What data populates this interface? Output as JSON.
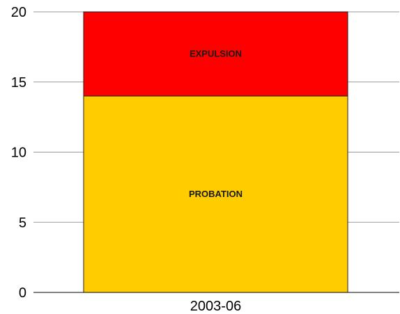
{
  "chart_data": {
    "type": "bar",
    "stacked": true,
    "categories": [
      "2003-06"
    ],
    "series": [
      {
        "name": "PROBATION",
        "values": [
          14
        ],
        "color": "#FFCC00"
      },
      {
        "name": "EXPULSION",
        "values": [
          6
        ],
        "color": "#FF0000"
      }
    ],
    "ylim": [
      0,
      20
    ],
    "yticks": [
      0,
      5,
      10,
      15,
      20
    ],
    "grid": true,
    "legend": "none",
    "title": "",
    "xlabel": "",
    "ylabel": ""
  }
}
